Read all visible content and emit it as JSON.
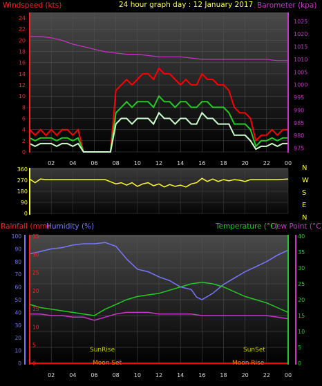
{
  "header": {
    "windspeed_label": "Windspeed (kts)",
    "title": "24 hour graph day : 12 January 2017",
    "barometer_label": "Barometer (kpa)"
  },
  "x_ticks": [
    "02",
    "04",
    "06",
    "08",
    "10",
    "12",
    "14",
    "16",
    "18",
    "20",
    "22",
    "00"
  ],
  "colors": {
    "wind_gust": "#ff0000",
    "wind_avg": "#22cc22",
    "wind_min": "#ccffcc",
    "barometer": "#cc33cc",
    "direction": "#ffff33",
    "humidity": "#7777ff",
    "temperature": "#22cc22",
    "dewpoint": "#cc33cc",
    "rainfall": "#ff0000",
    "sun": "#cccc00",
    "moon": "#ff8800"
  },
  "chart_data": [
    {
      "type": "line",
      "name": "wind-barometer",
      "ylabel_left": "Windspeed (kts)",
      "ylabel_right": "Barometer (kpa)",
      "y_left_ticks": [
        "0",
        "2",
        "4",
        "6",
        "8",
        "10",
        "12",
        "14",
        "16",
        "18",
        "20",
        "22",
        "24"
      ],
      "y_left_range": [
        0,
        25
      ],
      "y_right_ticks": [
        "975",
        "980",
        "985",
        "990",
        "995",
        "1000",
        "1005",
        "1010",
        "1015",
        "1020",
        "1025"
      ],
      "y_right_range": [
        973.5,
        1028.5
      ],
      "x_range_hours": [
        0,
        24
      ],
      "series": [
        {
          "key": "gust",
          "x": [
            0,
            0.5,
            1,
            1.5,
            2,
            2.5,
            3,
            3.5,
            4,
            4.5,
            5,
            5.5,
            6,
            6.5,
            7,
            7.5,
            8,
            8.5,
            9,
            9.5,
            10,
            10.5,
            11,
            11.5,
            12,
            12.5,
            13,
            13.5,
            14,
            14.5,
            15,
            15.5,
            16,
            16.5,
            17,
            17.5,
            18,
            18.5,
            19,
            19.5,
            20,
            20.5,
            21,
            21.5,
            22,
            22.5,
            23,
            23.5,
            24
          ],
          "y": [
            4,
            3,
            4,
            3,
            4,
            3,
            4,
            4,
            3,
            4,
            0,
            0,
            0,
            0,
            0,
            0,
            11,
            12,
            13,
            12,
            13,
            14,
            14,
            13,
            15,
            14,
            14,
            13,
            12,
            13,
            12,
            12,
            14,
            13,
            13,
            12,
            12,
            11,
            8,
            7,
            7,
            6,
            2,
            3,
            3,
            4,
            3,
            4,
            4
          ]
        },
        {
          "key": "avg",
          "x": [
            0,
            0.5,
            1,
            1.5,
            2,
            2.5,
            3,
            3.5,
            4,
            4.5,
            5,
            5.5,
            6,
            6.5,
            7,
            7.5,
            8,
            8.5,
            9,
            9.5,
            10,
            10.5,
            11,
            11.5,
            12,
            12.5,
            13,
            13.5,
            14,
            14.5,
            15,
            15.5,
            16,
            16.5,
            17,
            17.5,
            18,
            18.5,
            19,
            19.5,
            20,
            20.5,
            21,
            21.5,
            22,
            22.5,
            23,
            23.5,
            24
          ],
          "y": [
            2.5,
            2,
            2.5,
            2.5,
            2.5,
            2,
            2.5,
            2.5,
            2,
            2.5,
            0,
            0,
            0,
            0,
            0,
            0,
            7,
            8,
            9,
            8,
            9,
            9,
            9,
            8,
            10,
            9,
            9,
            8,
            9,
            9,
            8,
            8,
            9,
            9,
            8,
            8,
            8,
            7,
            5,
            5,
            5,
            4,
            1,
            2,
            2,
            2.5,
            2,
            2.5,
            2.5
          ]
        },
        {
          "key": "min",
          "x": [
            0,
            0.5,
            1,
            1.5,
            2,
            2.5,
            3,
            3.5,
            4,
            4.5,
            5,
            5.5,
            6,
            6.5,
            7,
            7.5,
            8,
            8.5,
            9,
            9.5,
            10,
            10.5,
            11,
            11.5,
            12,
            12.5,
            13,
            13.5,
            14,
            14.5,
            15,
            15.5,
            16,
            16.5,
            17,
            17.5,
            18,
            18.5,
            19,
            19.5,
            20,
            20.5,
            21,
            21.5,
            22,
            22.5,
            23,
            23.5,
            24
          ],
          "y": [
            1.5,
            1,
            1.5,
            1.5,
            1.5,
            1,
            1.5,
            1.5,
            1,
            1.5,
            0,
            0,
            0,
            0,
            0,
            0,
            5,
            6,
            6,
            5,
            6,
            6,
            6,
            5,
            7,
            6,
            6,
            5,
            6,
            6,
            5,
            5,
            7,
            6,
            6,
            5,
            5,
            5,
            3,
            3,
            3,
            2,
            0.5,
            1,
            1,
            1.5,
            1,
            1.5,
            1.5
          ]
        },
        {
          "key": "barometer",
          "x": [
            0,
            1,
            2,
            3,
            4,
            5,
            6,
            7,
            8,
            9,
            10,
            11,
            12,
            13,
            14,
            15,
            16,
            17,
            18,
            19,
            20,
            21,
            22,
            23,
            24
          ],
          "y": [
            1019,
            1019,
            1018.5,
            1017.5,
            1016,
            1015,
            1014,
            1013,
            1012.5,
            1012,
            1012,
            1011.5,
            1011,
            1011,
            1011,
            1010.5,
            1010,
            1010,
            1010,
            1010,
            1010,
            1010,
            1010,
            1009.5,
            1009.5
          ]
        }
      ]
    },
    {
      "type": "line",
      "name": "wind-direction",
      "y_ticks": [
        "360",
        "270",
        "180",
        "90",
        "0"
      ],
      "y_range": [
        0,
        360
      ],
      "direction_labels": [
        "N",
        "W",
        "S",
        "E",
        "N"
      ],
      "x_range_hours": [
        0,
        24
      ],
      "series": [
        {
          "key": "direction",
          "x": [
            0,
            0.5,
            1,
            1.5,
            2,
            3,
            4,
            5,
            6,
            7,
            8,
            8.5,
            9,
            9.5,
            10,
            10.5,
            11,
            11.5,
            12,
            12.5,
            13,
            13.5,
            14,
            14.5,
            15,
            15.5,
            16,
            16.5,
            17,
            17.5,
            18,
            18.5,
            19,
            19.5,
            20,
            20.5,
            21,
            22,
            23,
            24
          ],
          "y": [
            280,
            250,
            280,
            275,
            275,
            275,
            275,
            275,
            275,
            275,
            240,
            250,
            230,
            250,
            220,
            240,
            250,
            225,
            240,
            215,
            235,
            220,
            230,
            215,
            240,
            250,
            285,
            260,
            280,
            260,
            275,
            265,
            275,
            270,
            260,
            275,
            275,
            275,
            275,
            280
          ]
        }
      ]
    },
    {
      "type": "line",
      "name": "rain-humidity-temperature",
      "labels": {
        "rainfall": "Rainfall (mm)",
        "humidity": "Humidity (%)",
        "temperature": "Temperature (°C)",
        "dewpoint": "Dew Point (°C)"
      },
      "humidity_ticks": [
        "100",
        "90",
        "80",
        "70",
        "60",
        "50",
        "40",
        "30",
        "20",
        "10",
        "0"
      ],
      "humidity_range": [
        0,
        100
      ],
      "rain_ticks": [
        "35",
        "30",
        "25",
        "20",
        "15",
        "10",
        "5",
        "0"
      ],
      "temp_ticks": [
        "40",
        "35",
        "30",
        "25",
        "20",
        "15",
        "10",
        "5",
        "0"
      ],
      "temp_range": [
        0,
        40
      ],
      "x_range_hours": [
        0,
        24
      ],
      "series": [
        {
          "key": "humidity",
          "x": [
            0,
            1,
            2,
            3,
            4,
            5,
            6,
            7,
            8,
            9,
            10,
            11,
            12,
            13,
            14,
            15,
            15.5,
            16,
            17,
            18,
            19,
            20,
            21,
            22,
            23,
            24
          ],
          "y": [
            86,
            88,
            90,
            91,
            93,
            94,
            94,
            95,
            92,
            82,
            74,
            72,
            68,
            65,
            60,
            58,
            52,
            50,
            55,
            62,
            67,
            72,
            76,
            80,
            85,
            89
          ]
        },
        {
          "key": "temperature",
          "x": [
            0,
            1,
            2,
            3,
            4,
            5,
            6,
            7,
            8,
            9,
            10,
            11,
            12,
            13,
            14,
            15,
            16,
            17,
            18,
            19,
            20,
            21,
            22,
            23,
            24
          ],
          "y": [
            18.5,
            17.5,
            17,
            16.5,
            16,
            15.5,
            15,
            17,
            18.5,
            20,
            21,
            21.5,
            22,
            23,
            24,
            25,
            25.5,
            25,
            24,
            22.5,
            21,
            20,
            19,
            17.5,
            16
          ]
        },
        {
          "key": "dewpoint",
          "x": [
            0,
            1,
            2,
            3,
            4,
            5,
            6,
            7,
            8,
            9,
            10,
            11,
            12,
            13,
            14,
            15,
            16,
            17,
            18,
            19,
            20,
            21,
            22,
            23,
            24
          ],
          "y": [
            15.5,
            15.5,
            15,
            15,
            14.5,
            14.5,
            13.5,
            14.5,
            15.5,
            16,
            16,
            16,
            15.5,
            15.5,
            15.5,
            15.5,
            15,
            15,
            15,
            15,
            15,
            15,
            15,
            14.5,
            14
          ]
        },
        {
          "key": "rainfall",
          "x": [
            0,
            24
          ],
          "y": [
            0,
            0
          ]
        }
      ],
      "annotations": {
        "sunrise": "SunRise",
        "sunset": "SunSet",
        "moonset": "Moon Set",
        "moonrise": "Moon Rise"
      }
    }
  ]
}
